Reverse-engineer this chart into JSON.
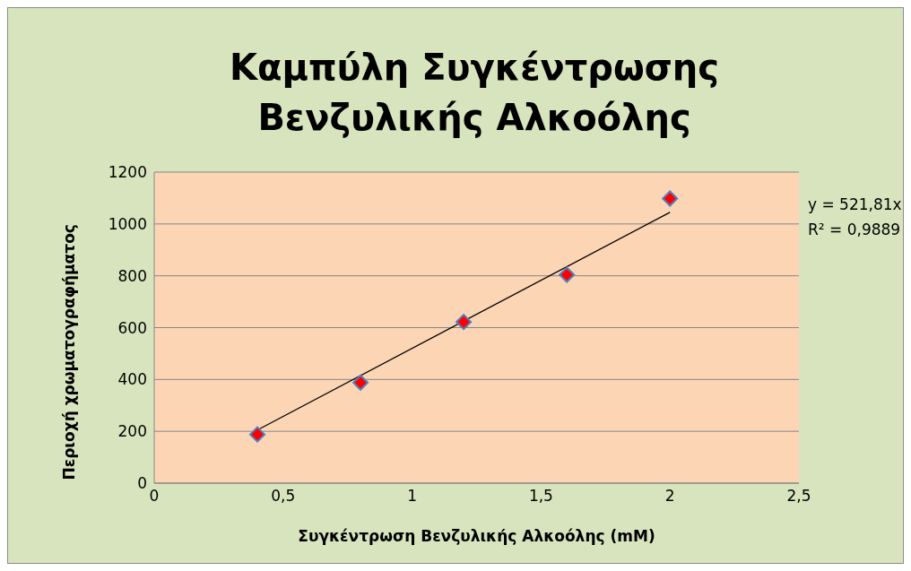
{
  "chart_data": {
    "type": "scatter",
    "title": "Καμπύλη Συγκέντρωσης Βενζυλικής Αλκοόλης",
    "xlabel": "Συγκέντρωση Βενζυλικής Αλκοόλης (mM)",
    "ylabel": "Περιοχή χρωματογραφήματος",
    "x": [
      0.4,
      0.8,
      1.2,
      1.6,
      2.0
    ],
    "series": [
      {
        "color": "#ff0000",
        "values": [
          188,
          388,
          622,
          804,
          1098
        ],
        "marker": "diamond"
      },
      {
        "type": "line",
        "color": "#000000",
        "x": [
          0.4,
          2.0
        ],
        "values": [
          205,
          1045
        ],
        "marker": "none",
        "line_style": "solid"
      }
    ],
    "annotations": [
      "y = 521,81x",
      "R² = 0,9889"
    ],
    "xlim": [
      0,
      2.5
    ],
    "xticks": [
      0,
      {
        "value": 0.5,
        "label": "0,5"
      },
      1,
      {
        "value": 1.5,
        "label": "1,5"
      },
      2,
      {
        "value": 2.5,
        "label": "2,5"
      }
    ],
    "ylim": [
      0,
      1200
    ],
    "yticks": [
      0,
      200,
      400,
      600,
      800,
      1000,
      1200
    ],
    "grid": "y"
  }
}
